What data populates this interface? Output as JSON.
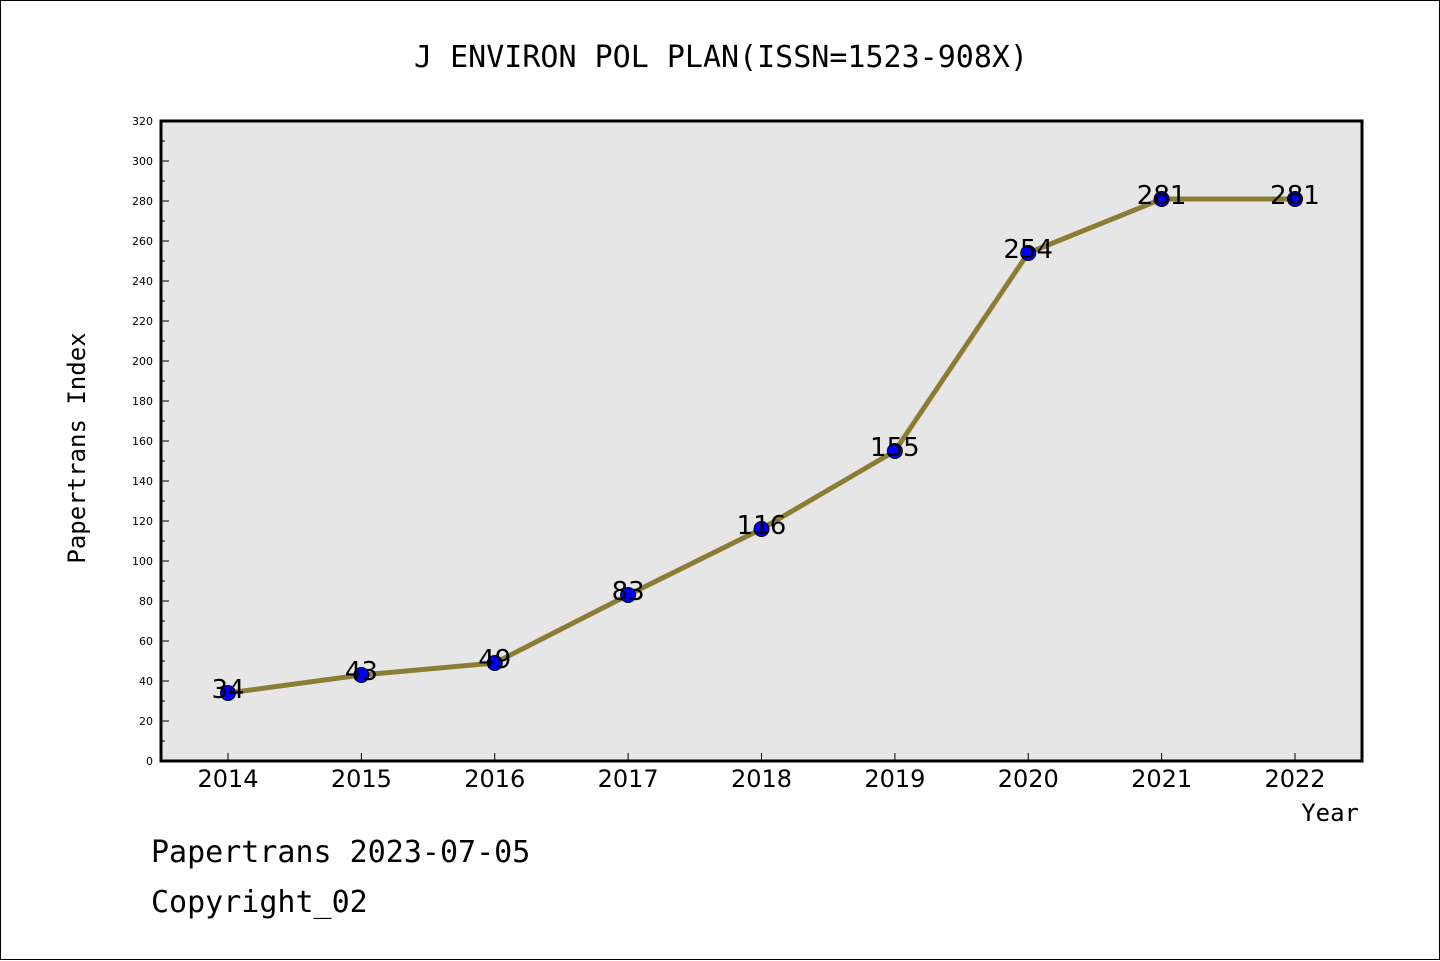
{
  "chart_data": {
    "type": "line",
    "title": "J ENVIRON POL PLAN(ISSN=1523-908X)",
    "xlabel": "Year",
    "ylabel": "Papertrans Index",
    "categories": [
      "2014",
      "2015",
      "2016",
      "2017",
      "2018",
      "2019",
      "2020",
      "2021",
      "2022"
    ],
    "series": [
      {
        "values": [
          34,
          43,
          49,
          83,
          116,
          155,
          254,
          281,
          281
        ]
      }
    ],
    "data_labels": [
      "34",
      "43",
      "49",
      "83",
      "116",
      "155",
      "254",
      "281",
      "281"
    ],
    "ylim": [
      0,
      320
    ],
    "yticks": [
      "0",
      "20",
      "40",
      "60",
      "80",
      "100",
      "120",
      "140",
      "160",
      "180",
      "200",
      "220",
      "240",
      "260",
      "280",
      "300",
      "320"
    ],
    "grid": false,
    "legend": "none",
    "colors": {
      "line": "#8c7d35",
      "marker": "#0000ff",
      "plot_background": "#e6e6e6"
    }
  },
  "footer": {
    "line1": "Papertrans 2023-07-05",
    "line2": "Copyright_02"
  }
}
